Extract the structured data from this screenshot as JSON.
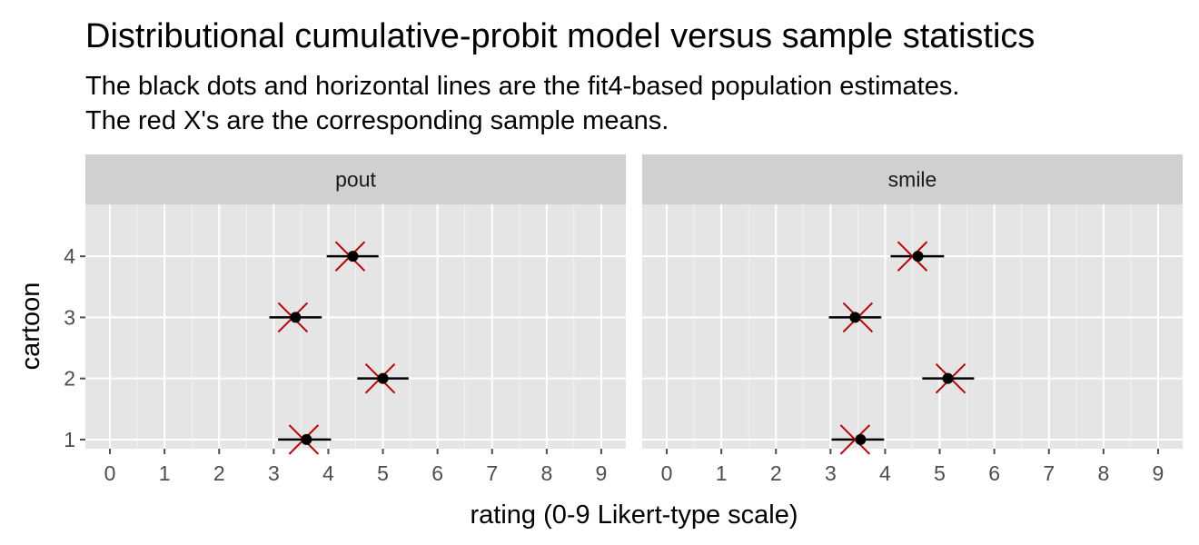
{
  "chart_data": {
    "type": "scatter",
    "title": "Distributional cumulative-probit model versus sample statistics",
    "subtitle_lines": [
      "The black dots and horizontal lines are the fit4-based population estimates.",
      "The red X's are the corresponding sample means."
    ],
    "xlabel": "rating (0-9 Likert-type scale)",
    "ylabel": "cartoon",
    "xlim": [
      -0.45,
      9.45
    ],
    "ylim": [
      0.85,
      4.85
    ],
    "x_ticks": [
      "0",
      "1",
      "2",
      "3",
      "4",
      "5",
      "6",
      "7",
      "8",
      "9"
    ],
    "y_ticks": [
      "1",
      "2",
      "3",
      "4"
    ],
    "grid": true,
    "colors": {
      "panel_bg": "#e5e5e5",
      "strip_bg": "#d0d0d0",
      "grid_major": "#ffffff",
      "grid_minor": "#f2f2f2",
      "estimate": "#000000",
      "sample_mean": "#c00000",
      "tick": "#4d4d4d"
    },
    "facets": [
      {
        "label": "pout",
        "points": [
          {
            "cartoon": 1,
            "estimate": 3.6,
            "lower": 3.08,
            "upper": 4.05,
            "sample_mean": 3.55
          },
          {
            "cartoon": 2,
            "estimate": 5.0,
            "lower": 4.53,
            "upper": 5.47,
            "sample_mean": 4.95
          },
          {
            "cartoon": 3,
            "estimate": 3.4,
            "lower": 2.92,
            "upper": 3.88,
            "sample_mean": 3.35
          },
          {
            "cartoon": 4,
            "estimate": 4.45,
            "lower": 3.97,
            "upper": 4.92,
            "sample_mean": 4.4
          }
        ]
      },
      {
        "label": "smile",
        "points": [
          {
            "cartoon": 1,
            "estimate": 3.55,
            "lower": 3.02,
            "upper": 3.98,
            "sample_mean": 3.45
          },
          {
            "cartoon": 2,
            "estimate": 5.15,
            "lower": 4.68,
            "upper": 5.63,
            "sample_mean": 5.2
          },
          {
            "cartoon": 3,
            "estimate": 3.45,
            "lower": 2.97,
            "upper": 3.93,
            "sample_mean": 3.5
          },
          {
            "cartoon": 4,
            "estimate": 4.6,
            "lower": 4.1,
            "upper": 5.08,
            "sample_mean": 4.5
          }
        ]
      }
    ]
  }
}
